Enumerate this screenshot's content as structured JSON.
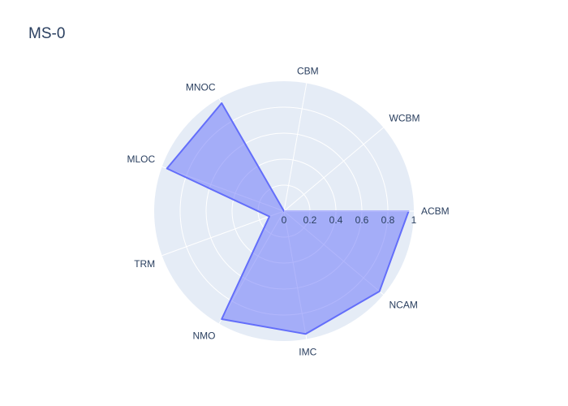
{
  "chart_data": {
    "type": "radar",
    "title": "MS-0",
    "categories": [
      "ACBM",
      "WCBM",
      "CBM",
      "MNOC",
      "MLOC",
      "TRM",
      "NMO",
      "IMC",
      "NCAM"
    ],
    "series": [
      {
        "values": [
          0.96,
          0.0,
          0.0,
          0.96,
          0.96,
          0.12,
          0.96,
          0.96,
          0.96
        ]
      }
    ],
    "radial_ticks": [
      "0",
      "0.2",
      "0.4",
      "0.6",
      "0.8",
      "1"
    ],
    "radial_range": [
      0,
      1
    ],
    "grid": true,
    "colors": {
      "fill": "#636efa",
      "line": "#636efa",
      "polar_bg": "#e5ecf6",
      "grid": "#ffffff",
      "text": "#2a3f5f"
    }
  }
}
